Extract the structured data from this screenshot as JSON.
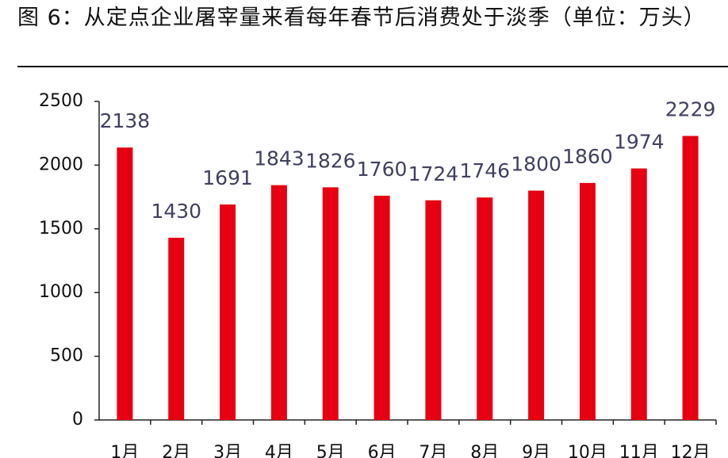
{
  "chart_data": {
    "type": "bar",
    "title": "图 6：从定点企业屠宰量来看每年春节后消费处于淡季（单位：万头）",
    "categories": [
      "1月",
      "2月",
      "3月",
      "4月",
      "5月",
      "6月",
      "7月",
      "8月",
      "9月",
      "10月",
      "11月",
      "12月"
    ],
    "values": [
      2138,
      1430,
      1691,
      1843,
      1826,
      1760,
      1724,
      1746,
      1800,
      1860,
      1974,
      2229
    ],
    "color": "#e60012",
    "ylim": [
      0,
      2500
    ],
    "yticks": [
      0,
      500,
      1000,
      1500,
      2000,
      2500
    ],
    "grid": false
  }
}
